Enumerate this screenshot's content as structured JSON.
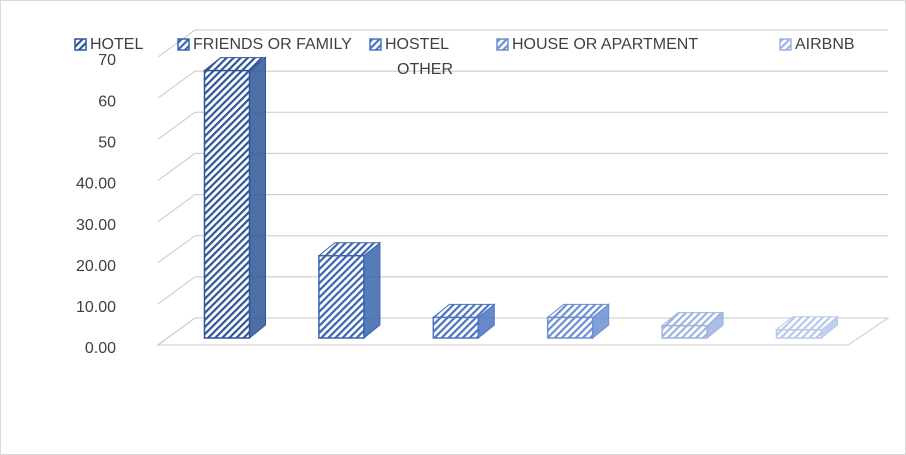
{
  "chart_data": {
    "type": "bar3d",
    "series": [
      {
        "name": "HOTEL",
        "color": "#2f5597",
        "values": [
          65
        ]
      },
      {
        "name": "FRIENDS OR FAMILY",
        "color": "#3a64ad",
        "values": [
          20
        ]
      },
      {
        "name": "HOSTEL",
        "color": "#4a74c0",
        "values": [
          5
        ]
      },
      {
        "name": "HOUSE OR APARTMENT",
        "color": "#6b8fd0",
        "values": [
          5
        ]
      },
      {
        "name": "AIRBNB",
        "color": "#9db3e0",
        "values": [
          3
        ]
      },
      {
        "name": "OTHER",
        "color": "#b7c8ea",
        "values": [
          2
        ]
      }
    ],
    "ylim": [
      0,
      70
    ],
    "yticks": [
      {
        "value": 0,
        "label": "0.00"
      },
      {
        "value": 10,
        "label": "10.00"
      },
      {
        "value": 20,
        "label": "20.00"
      },
      {
        "value": 30,
        "label": "30.00"
      },
      {
        "value": 40,
        "label": "40.00"
      },
      50,
      60,
      70
    ],
    "grid": true
  }
}
